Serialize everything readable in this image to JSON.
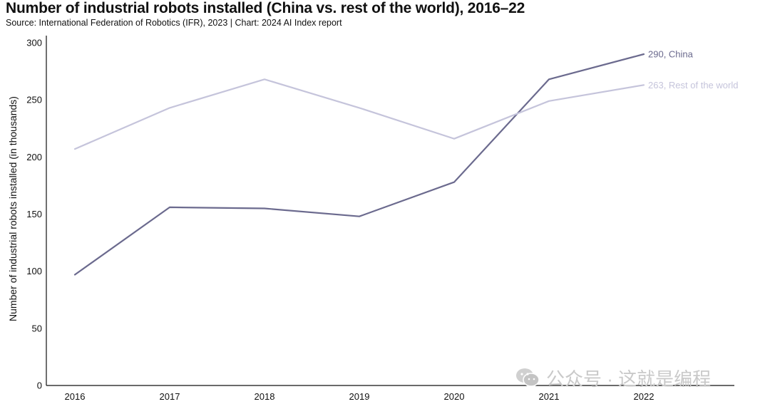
{
  "chart_data": {
    "type": "line",
    "title": "Number of industrial robots installed (China vs. rest of the world), 2016–22",
    "subtitle": "Source: International Federation of Robotics (IFR), 2023 | Chart: 2024 AI Index report",
    "ylabel": "Number of industrial robots installed (in thousands)",
    "xlabel": "",
    "x": [
      "2016",
      "2017",
      "2018",
      "2019",
      "2020",
      "2021",
      "2022"
    ],
    "ylim": [
      0,
      300
    ],
    "yticks": [
      0,
      50,
      100,
      150,
      200,
      250,
      300
    ],
    "grid": false,
    "series": [
      {
        "name": "China",
        "values": [
          97,
          156,
          155,
          148,
          178,
          268,
          290
        ],
        "end_label": "290, China",
        "color": "#6b6a8e"
      },
      {
        "name": "Rest of the world",
        "values": [
          207,
          243,
          268,
          243,
          216,
          249,
          263
        ],
        "end_label": "263, Rest of the world",
        "color": "#c5c4db"
      }
    ]
  },
  "watermark": {
    "text": "公众号 · 这就是编程",
    "icon": "wechat-icon"
  }
}
